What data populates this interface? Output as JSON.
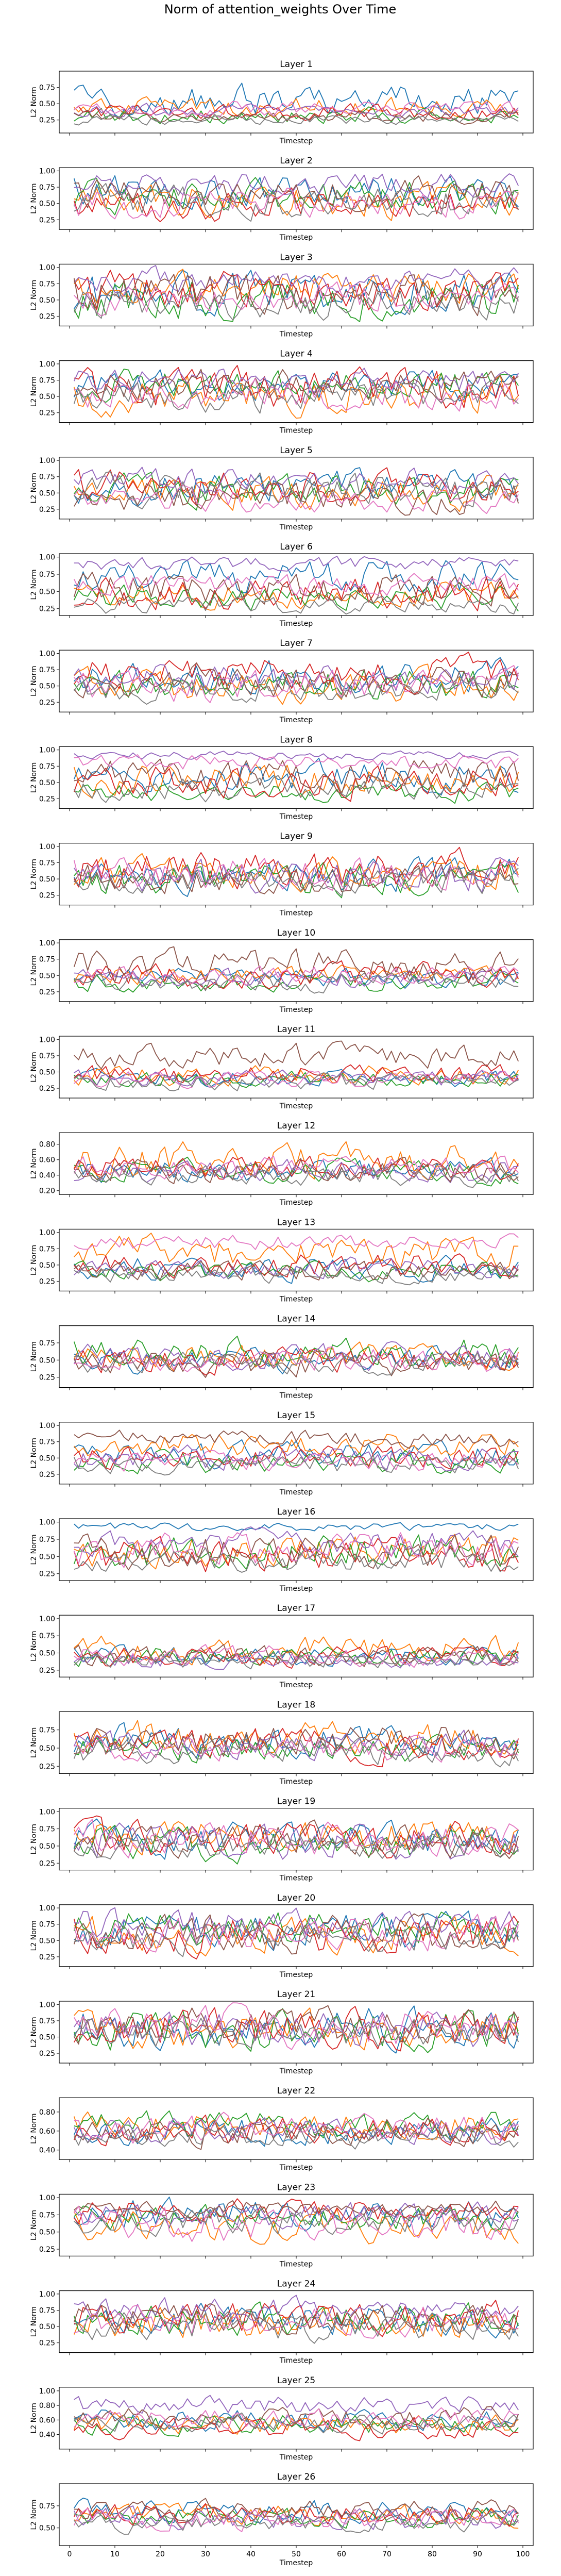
{
  "figure": {
    "suptitle": "Norm of attention_weights Over Time"
  },
  "series_colors": [
    "#1f77b4",
    "#ff7f0e",
    "#2ca02c",
    "#d62728",
    "#9467bd",
    "#8c564b",
    "#e377c2",
    "#7f7f7f"
  ],
  "chart_data": [
    {
      "type": "line",
      "title": "Layer 1",
      "xlabel": "Timestep",
      "ylabel": "L2 Norm",
      "xlim": [
        0,
        100
      ],
      "ylim": [
        0.05,
        1.0
      ],
      "yticks": [
        0.25,
        0.5,
        0.75
      ],
      "series_count": 8,
      "series_mean": [
        0.55,
        0.45,
        0.32,
        0.38,
        0.4,
        0.3,
        0.42,
        0.25
      ],
      "series_amp": [
        0.2,
        0.12,
        0.1,
        0.1,
        0.08,
        0.08,
        0.1,
        0.06
      ],
      "x": "timesteps 1-99",
      "grid": false
    },
    {
      "type": "line",
      "title": "Layer 2",
      "xlabel": "Timestep",
      "ylabel": "L2 Norm",
      "xlim": [
        0,
        100
      ],
      "ylim": [
        0.1,
        1.05
      ],
      "yticks": [
        0.25,
        0.5,
        0.75,
        1.0
      ],
      "series_count": 8,
      "series_mean": [
        0.7,
        0.55,
        0.6,
        0.45,
        0.8,
        0.65,
        0.5,
        0.55
      ],
      "series_amp": [
        0.2,
        0.22,
        0.2,
        0.2,
        0.15,
        0.2,
        0.2,
        0.2
      ],
      "grid": false
    },
    {
      "type": "line",
      "title": "Layer 3",
      "xlabel": "Timestep",
      "ylabel": "L2 Norm",
      "xlim": [
        0,
        100
      ],
      "ylim": [
        0.1,
        1.05
      ],
      "yticks": [
        0.25,
        0.5,
        0.75,
        1.0
      ],
      "series_count": 8,
      "series_mean": [
        0.6,
        0.7,
        0.5,
        0.65,
        0.8,
        0.6,
        0.55,
        0.45
      ],
      "series_amp": [
        0.25,
        0.2,
        0.25,
        0.25,
        0.15,
        0.25,
        0.2,
        0.2
      ],
      "grid": false
    },
    {
      "type": "line",
      "title": "Layer 4",
      "xlabel": "Timestep",
      "ylabel": "L2 Norm",
      "xlim": [
        0,
        100
      ],
      "ylim": [
        0.1,
        1.05
      ],
      "yticks": [
        0.25,
        0.5,
        0.75,
        1.0
      ],
      "series_count": 8,
      "series_mean": [
        0.65,
        0.55,
        0.7,
        0.6,
        0.75,
        0.7,
        0.55,
        0.5
      ],
      "series_amp": [
        0.2,
        0.25,
        0.2,
        0.25,
        0.15,
        0.2,
        0.2,
        0.2
      ],
      "grid": false
    },
    {
      "type": "line",
      "title": "Layer 5",
      "xlabel": "Timestep",
      "ylabel": "L2 Norm",
      "xlim": [
        0,
        100
      ],
      "ylim": [
        0.1,
        1.05
      ],
      "yticks": [
        0.25,
        0.5,
        0.75,
        1.0
      ],
      "series_count": 8,
      "series_mean": [
        0.6,
        0.5,
        0.55,
        0.6,
        0.7,
        0.45,
        0.4,
        0.55
      ],
      "series_amp": [
        0.2,
        0.2,
        0.2,
        0.2,
        0.15,
        0.2,
        0.15,
        0.2
      ],
      "grid": false
    },
    {
      "type": "line",
      "title": "Layer 6",
      "xlabel": "Timestep",
      "ylabel": "L2 Norm",
      "xlim": [
        0,
        100
      ],
      "ylim": [
        0.15,
        1.05
      ],
      "yticks": [
        0.25,
        0.5,
        0.75,
        1.0
      ],
      "series_count": 8,
      "series_mean": [
        0.7,
        0.45,
        0.4,
        0.5,
        0.9,
        0.55,
        0.6,
        0.3
      ],
      "series_amp": [
        0.2,
        0.15,
        0.15,
        0.2,
        0.08,
        0.2,
        0.15,
        0.1
      ],
      "grid": false
    },
    {
      "type": "line",
      "title": "Layer 7",
      "xlabel": "Timestep",
      "ylabel": "L2 Norm",
      "xlim": [
        0,
        100
      ],
      "ylim": [
        0.1,
        1.05
      ],
      "yticks": [
        0.25,
        0.5,
        0.75,
        1.0
      ],
      "series_count": 8,
      "series_mean": [
        0.65,
        0.5,
        0.55,
        0.7,
        0.6,
        0.55,
        0.5,
        0.45
      ],
      "series_amp": [
        0.2,
        0.2,
        0.2,
        0.2,
        0.2,
        0.2,
        0.2,
        0.15
      ],
      "grid": false
    },
    {
      "type": "line",
      "title": "Layer 8",
      "xlabel": "Timestep",
      "ylabel": "L2 Norm",
      "xlim": [
        0,
        100
      ],
      "ylim": [
        0.1,
        1.05
      ],
      "yticks": [
        0.25,
        0.5,
        0.75,
        1.0
      ],
      "series_count": 8,
      "series_mean": [
        0.6,
        0.55,
        0.35,
        0.5,
        0.92,
        0.6,
        0.8,
        0.4
      ],
      "series_amp": [
        0.2,
        0.2,
        0.12,
        0.2,
        0.05,
        0.2,
        0.1,
        0.15
      ],
      "grid": false
    },
    {
      "type": "line",
      "title": "Layer 9",
      "xlabel": "Timestep",
      "ylabel": "L2 Norm",
      "xlim": [
        0,
        100
      ],
      "ylim": [
        0.1,
        1.05
      ],
      "yticks": [
        0.25,
        0.5,
        0.75,
        1.0
      ],
      "series_count": 8,
      "series_mean": [
        0.55,
        0.6,
        0.5,
        0.65,
        0.55,
        0.5,
        0.6,
        0.45
      ],
      "series_amp": [
        0.2,
        0.2,
        0.2,
        0.25,
        0.2,
        0.2,
        0.2,
        0.15
      ],
      "grid": false
    },
    {
      "type": "line",
      "title": "Layer 10",
      "xlabel": "Timestep",
      "ylabel": "L2 Norm",
      "xlim": [
        0,
        100
      ],
      "ylim": [
        0.1,
        1.05
      ],
      "yticks": [
        0.25,
        0.5,
        0.75,
        1.0
      ],
      "series_count": 8,
      "series_mean": [
        0.45,
        0.5,
        0.4,
        0.5,
        0.45,
        0.65,
        0.5,
        0.4
      ],
      "series_amp": [
        0.12,
        0.12,
        0.12,
        0.15,
        0.12,
        0.2,
        0.12,
        0.12
      ],
      "grid": false
    },
    {
      "type": "line",
      "title": "Layer 11",
      "xlabel": "Timestep",
      "ylabel": "L2 Norm",
      "xlim": [
        0,
        100
      ],
      "ylim": [
        0.1,
        1.05
      ],
      "yticks": [
        0.25,
        0.5,
        0.75,
        1.0
      ],
      "series_count": 8,
      "series_mean": [
        0.4,
        0.45,
        0.4,
        0.45,
        0.4,
        0.75,
        0.4,
        0.35
      ],
      "series_amp": [
        0.1,
        0.12,
        0.1,
        0.12,
        0.1,
        0.15,
        0.1,
        0.1
      ],
      "grid": false
    },
    {
      "type": "line",
      "title": "Layer 12",
      "xlabel": "Timestep",
      "ylabel": "L2 Norm",
      "xlim": [
        0,
        100
      ],
      "ylim": [
        0.15,
        0.95
      ],
      "yticks": [
        0.2,
        0.4,
        0.6,
        0.8
      ],
      "series_count": 8,
      "series_mean": [
        0.45,
        0.6,
        0.45,
        0.5,
        0.45,
        0.45,
        0.5,
        0.4
      ],
      "series_amp": [
        0.12,
        0.18,
        0.12,
        0.12,
        0.12,
        0.12,
        0.12,
        0.1
      ],
      "grid": false
    },
    {
      "type": "line",
      "title": "Layer 13",
      "xlabel": "Timestep",
      "ylabel": "L2 Norm",
      "xlim": [
        0,
        100
      ],
      "ylim": [
        0.1,
        1.05
      ],
      "yticks": [
        0.25,
        0.5,
        0.75,
        1.0
      ],
      "series_count": 8,
      "series_mean": [
        0.45,
        0.7,
        0.4,
        0.5,
        0.45,
        0.4,
        0.85,
        0.35
      ],
      "series_amp": [
        0.15,
        0.2,
        0.12,
        0.15,
        0.12,
        0.12,
        0.1,
        0.1
      ],
      "grid": false
    },
    {
      "type": "line",
      "title": "Layer 14",
      "xlabel": "Timestep",
      "ylabel": "L2 Norm",
      "xlim": [
        0,
        100
      ],
      "ylim": [
        0.1,
        1.0
      ],
      "yticks": [
        0.25,
        0.5,
        0.75
      ],
      "series_count": 8,
      "series_mean": [
        0.5,
        0.55,
        0.6,
        0.5,
        0.55,
        0.45,
        0.5,
        0.45
      ],
      "series_amp": [
        0.15,
        0.15,
        0.18,
        0.15,
        0.15,
        0.15,
        0.15,
        0.12
      ],
      "grid": false
    },
    {
      "type": "line",
      "title": "Layer 15",
      "xlabel": "Timestep",
      "ylabel": "L2 Norm",
      "xlim": [
        0,
        100
      ],
      "ylim": [
        0.1,
        1.05
      ],
      "yticks": [
        0.25,
        0.5,
        0.75,
        1.0
      ],
      "series_count": 8,
      "series_mean": [
        0.55,
        0.7,
        0.45,
        0.5,
        0.5,
        0.8,
        0.45,
        0.4
      ],
      "series_amp": [
        0.15,
        0.15,
        0.15,
        0.15,
        0.15,
        0.1,
        0.12,
        0.12
      ],
      "grid": false
    },
    {
      "type": "line",
      "title": "Layer 16",
      "xlabel": "Timestep",
      "ylabel": "L2 Norm",
      "xlim": [
        0,
        100
      ],
      "ylim": [
        0.15,
        1.05
      ],
      "yticks": [
        0.25,
        0.5,
        0.75,
        1.0
      ],
      "series_count": 8,
      "series_mean": [
        0.93,
        0.6,
        0.55,
        0.5,
        0.7,
        0.55,
        0.6,
        0.45
      ],
      "series_amp": [
        0.05,
        0.2,
        0.2,
        0.2,
        0.15,
        0.2,
        0.2,
        0.15
      ],
      "grid": false
    },
    {
      "type": "line",
      "title": "Layer 17",
      "xlabel": "Timestep",
      "ylabel": "L2 Norm",
      "xlim": [
        0,
        100
      ],
      "ylim": [
        0.15,
        1.05
      ],
      "yticks": [
        0.25,
        0.5,
        0.75,
        1.0
      ],
      "series_count": 8,
      "series_mean": [
        0.45,
        0.55,
        0.45,
        0.45,
        0.4,
        0.45,
        0.45,
        0.4
      ],
      "series_amp": [
        0.12,
        0.15,
        0.12,
        0.12,
        0.1,
        0.12,
        0.12,
        0.1
      ],
      "grid": false
    },
    {
      "type": "line",
      "title": "Layer 18",
      "xlabel": "Timestep",
      "ylabel": "L2 Norm",
      "xlim": [
        0,
        100
      ],
      "ylim": [
        0.15,
        1.0
      ],
      "yticks": [
        0.25,
        0.5,
        0.75
      ],
      "series_count": 8,
      "series_mean": [
        0.6,
        0.65,
        0.5,
        0.55,
        0.55,
        0.6,
        0.5,
        0.45
      ],
      "series_amp": [
        0.18,
        0.18,
        0.15,
        0.18,
        0.15,
        0.18,
        0.15,
        0.15
      ],
      "grid": false
    },
    {
      "type": "line",
      "title": "Layer 19",
      "xlabel": "Timestep",
      "ylabel": "L2 Norm",
      "xlim": [
        0,
        100
      ],
      "ylim": [
        0.15,
        1.05
      ],
      "yticks": [
        0.25,
        0.5,
        0.75,
        1.0
      ],
      "series_count": 8,
      "series_mean": [
        0.6,
        0.65,
        0.55,
        0.6,
        0.55,
        0.6,
        0.6,
        0.5
      ],
      "series_amp": [
        0.2,
        0.2,
        0.2,
        0.2,
        0.2,
        0.2,
        0.2,
        0.15
      ],
      "grid": false
    },
    {
      "type": "line",
      "title": "Layer 20",
      "xlabel": "Timestep",
      "ylabel": "L2 Norm",
      "xlim": [
        0,
        100
      ],
      "ylim": [
        0.1,
        1.05
      ],
      "yticks": [
        0.25,
        0.5,
        0.75,
        1.0
      ],
      "series_count": 8,
      "series_mean": [
        0.65,
        0.6,
        0.7,
        0.6,
        0.75,
        0.6,
        0.6,
        0.55
      ],
      "series_amp": [
        0.22,
        0.22,
        0.22,
        0.25,
        0.2,
        0.22,
        0.22,
        0.2
      ],
      "grid": false
    },
    {
      "type": "line",
      "title": "Layer 21",
      "xlabel": "Timestep",
      "ylabel": "L2 Norm",
      "xlim": [
        0,
        100
      ],
      "ylim": [
        0.1,
        1.05
      ],
      "yticks": [
        0.25,
        0.5,
        0.75,
        1.0
      ],
      "series_count": 8,
      "series_mean": [
        0.65,
        0.65,
        0.6,
        0.65,
        0.6,
        0.65,
        0.65,
        0.55
      ],
      "series_amp": [
        0.25,
        0.25,
        0.25,
        0.25,
        0.22,
        0.25,
        0.25,
        0.2
      ],
      "grid": false
    },
    {
      "type": "line",
      "title": "Layer 22",
      "xlabel": "Timestep",
      "ylabel": "L2 Norm",
      "xlim": [
        0,
        100
      ],
      "ylim": [
        0.3,
        0.95
      ],
      "yticks": [
        0.4,
        0.6,
        0.8
      ],
      "series_count": 8,
      "series_mean": [
        0.6,
        0.65,
        0.65,
        0.6,
        0.6,
        0.6,
        0.62,
        0.55
      ],
      "series_amp": [
        0.12,
        0.12,
        0.12,
        0.12,
        0.1,
        0.12,
        0.12,
        0.1
      ],
      "grid": false
    },
    {
      "type": "line",
      "title": "Layer 23",
      "xlabel": "Timestep",
      "ylabel": "L2 Norm",
      "xlim": [
        0,
        100
      ],
      "ylim": [
        0.15,
        1.05
      ],
      "yticks": [
        0.25,
        0.5,
        0.75,
        1.0
      ],
      "series_count": 8,
      "series_mean": [
        0.75,
        0.6,
        0.7,
        0.8,
        0.75,
        0.85,
        0.6,
        0.65
      ],
      "series_amp": [
        0.18,
        0.2,
        0.15,
        0.15,
        0.15,
        0.1,
        0.2,
        0.15
      ],
      "grid": false
    },
    {
      "type": "line",
      "title": "Layer 24",
      "xlabel": "Timestep",
      "ylabel": "L2 Norm",
      "xlim": [
        0,
        100
      ],
      "ylim": [
        0.1,
        1.05
      ],
      "yticks": [
        0.25,
        0.5,
        0.75,
        1.0
      ],
      "series_count": 8,
      "series_mean": [
        0.6,
        0.55,
        0.6,
        0.65,
        0.75,
        0.6,
        0.6,
        0.5
      ],
      "series_amp": [
        0.2,
        0.2,
        0.2,
        0.2,
        0.15,
        0.2,
        0.2,
        0.18
      ],
      "grid": false
    },
    {
      "type": "line",
      "title": "Layer 25",
      "xlabel": "Timestep",
      "ylabel": "L2 Norm",
      "xlim": [
        0,
        100
      ],
      "ylim": [
        0.2,
        1.05
      ],
      "yticks": [
        0.4,
        0.6,
        0.8,
        1.0
      ],
      "series_count": 8,
      "series_mean": [
        0.6,
        0.55,
        0.55,
        0.5,
        0.8,
        0.65,
        0.6,
        0.55
      ],
      "series_amp": [
        0.12,
        0.12,
        0.12,
        0.12,
        0.1,
        0.12,
        0.12,
        0.1
      ],
      "grid": false
    },
    {
      "type": "line",
      "title": "Layer 26",
      "xlabel": "Timestep",
      "ylabel": "L2 Norm",
      "xlim": [
        0,
        100
      ],
      "ylim": [
        0.3,
        1.0
      ],
      "yticks": [
        0.5,
        0.75
      ],
      "xticks": [
        0,
        10,
        20,
        30,
        40,
        50,
        60,
        70,
        80,
        90,
        100
      ],
      "series_count": 8,
      "series_mean": [
        0.7,
        0.65,
        0.6,
        0.65,
        0.6,
        0.7,
        0.6,
        0.55
      ],
      "series_amp": [
        0.1,
        0.1,
        0.1,
        0.1,
        0.1,
        0.1,
        0.1,
        0.08
      ],
      "grid": false
    }
  ]
}
